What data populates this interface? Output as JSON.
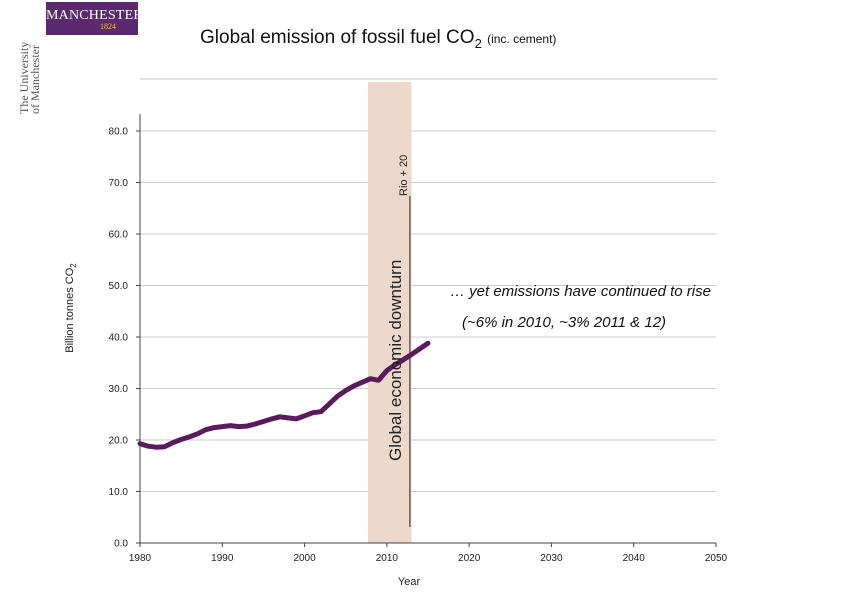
{
  "logo": {
    "wordmark": "MANCHESTER",
    "year": "1824",
    "university_line1": "The University",
    "university_line2": "of Manchester"
  },
  "colors": {
    "brand": "#5b2a6e",
    "series": "#5b1a5e",
    "band": "#ecd9cb",
    "gold": "#f2c23a"
  },
  "chart_data": {
    "type": "line",
    "title": "Global emission of fossil fuel CO",
    "title_subscript": "2",
    "title_suffix": "(inc. cement)",
    "xlabel": "Year",
    "ylabel": "Billion tonnes CO",
    "ylabel_subscript": "2",
    "xlim": [
      1980,
      2050
    ],
    "ylim": [
      0,
      80
    ],
    "x_ticks": [
      1980,
      1990,
      2000,
      2010,
      2020,
      2030,
      2040,
      2050
    ],
    "y_ticks": [
      0,
      10,
      20,
      30,
      40,
      50,
      60,
      70,
      80
    ],
    "y_tick_labels": [
      "0.0",
      "10.0",
      "20.0",
      "30.0",
      "40.0",
      "50.0",
      "60.0",
      "70.0",
      "80.0"
    ],
    "grid": "horizontal",
    "series": [
      {
        "x": [
          1980,
          1981,
          1982,
          1983,
          1984,
          1985,
          1986,
          1987,
          1988,
          1989,
          1990,
          1991,
          1992,
          1993,
          1994,
          1995,
          1996,
          1997,
          1998,
          1999,
          2000,
          2001,
          2002,
          2003,
          2004,
          2005,
          2006,
          2007,
          2008,
          2009,
          2010,
          2011,
          2012,
          2013,
          2014,
          2015
        ],
        "y": [
          19.3,
          18.8,
          18.6,
          18.7,
          19.5,
          20.1,
          20.6,
          21.2,
          22.0,
          22.4,
          22.6,
          22.8,
          22.6,
          22.7,
          23.1,
          23.6,
          24.1,
          24.5,
          24.3,
          24.1,
          24.7,
          25.3,
          25.5,
          27.0,
          28.5,
          29.6,
          30.5,
          31.2,
          31.9,
          31.6,
          33.5,
          34.6,
          35.6,
          36.6,
          37.7,
          38.8
        ]
      }
    ],
    "annotations": [
      {
        "label": "Global economic downturn",
        "x_start": 2007.7,
        "x_end": 2013
      },
      {
        "label": "Rio + 20",
        "x": 2012.8
      }
    ],
    "note_line1": "… yet emissions have continued to rise",
    "note_line2": "(~6% in 2010, ~3% 2011 & 12)"
  }
}
